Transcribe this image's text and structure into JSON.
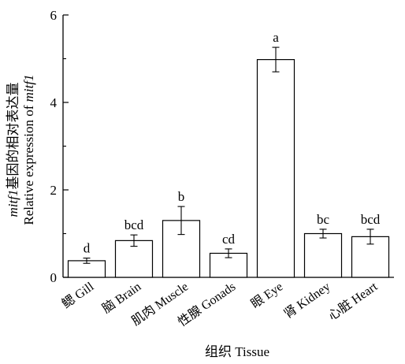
{
  "chart_data": {
    "type": "bar",
    "categories": [
      "鳃 Gill",
      "脑 Brain",
      "肌肉 Muscle",
      "性腺 Gonads",
      "眼 Eye",
      "肾 Kidney",
      "心脏 Heart"
    ],
    "values": [
      0.38,
      0.84,
      1.3,
      0.55,
      4.98,
      1.0,
      0.93
    ],
    "errors": [
      0.06,
      0.13,
      0.32,
      0.1,
      0.28,
      0.1,
      0.17
    ],
    "significance": [
      "d",
      "bcd",
      "b",
      "cd",
      "a",
      "bc",
      "bcd"
    ],
    "xlabel": "组织 Tissue",
    "ylabel_line1_italic": "mitf1",
    "ylabel_line1_rest": "基因的相对表达量",
    "ylabel_line2_prefix": "Relative expression of ",
    "ylabel_line2_italic": "mitf1",
    "ylim": [
      0,
      6
    ],
    "yticks": [
      "0",
      "2",
      "4",
      "6"
    ],
    "bar_color": "#ffffff",
    "edge_color": "#000000"
  }
}
